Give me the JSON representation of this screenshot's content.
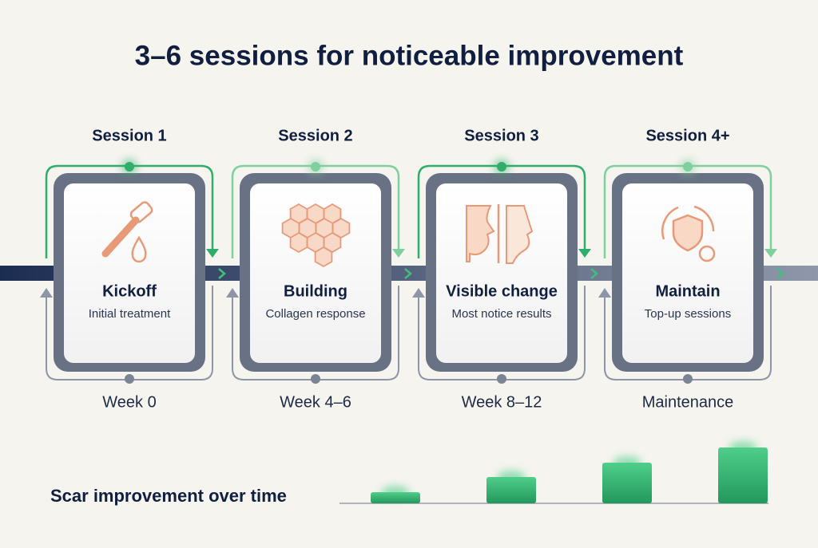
{
  "title": "3–6 sessions for noticeable improvement",
  "stages": [
    {
      "session": "Session 1",
      "name": "Kickoff",
      "description": "Initial treatment",
      "timing": "Week 0"
    },
    {
      "session": "Session 2",
      "name": "Building",
      "description": "Collagen response",
      "timing": "Week 4–6"
    },
    {
      "session": "Session 3",
      "name": "Visible change",
      "description": "Most notice results",
      "timing": "Week 8–12"
    },
    {
      "session": "Session 4+",
      "name": "Maintain",
      "description": "Top-up sessions",
      "timing": "Maintenance"
    }
  ],
  "improvement": {
    "label": "Scar improvement over time",
    "values": [
      14,
      33,
      51,
      70
    ]
  }
}
